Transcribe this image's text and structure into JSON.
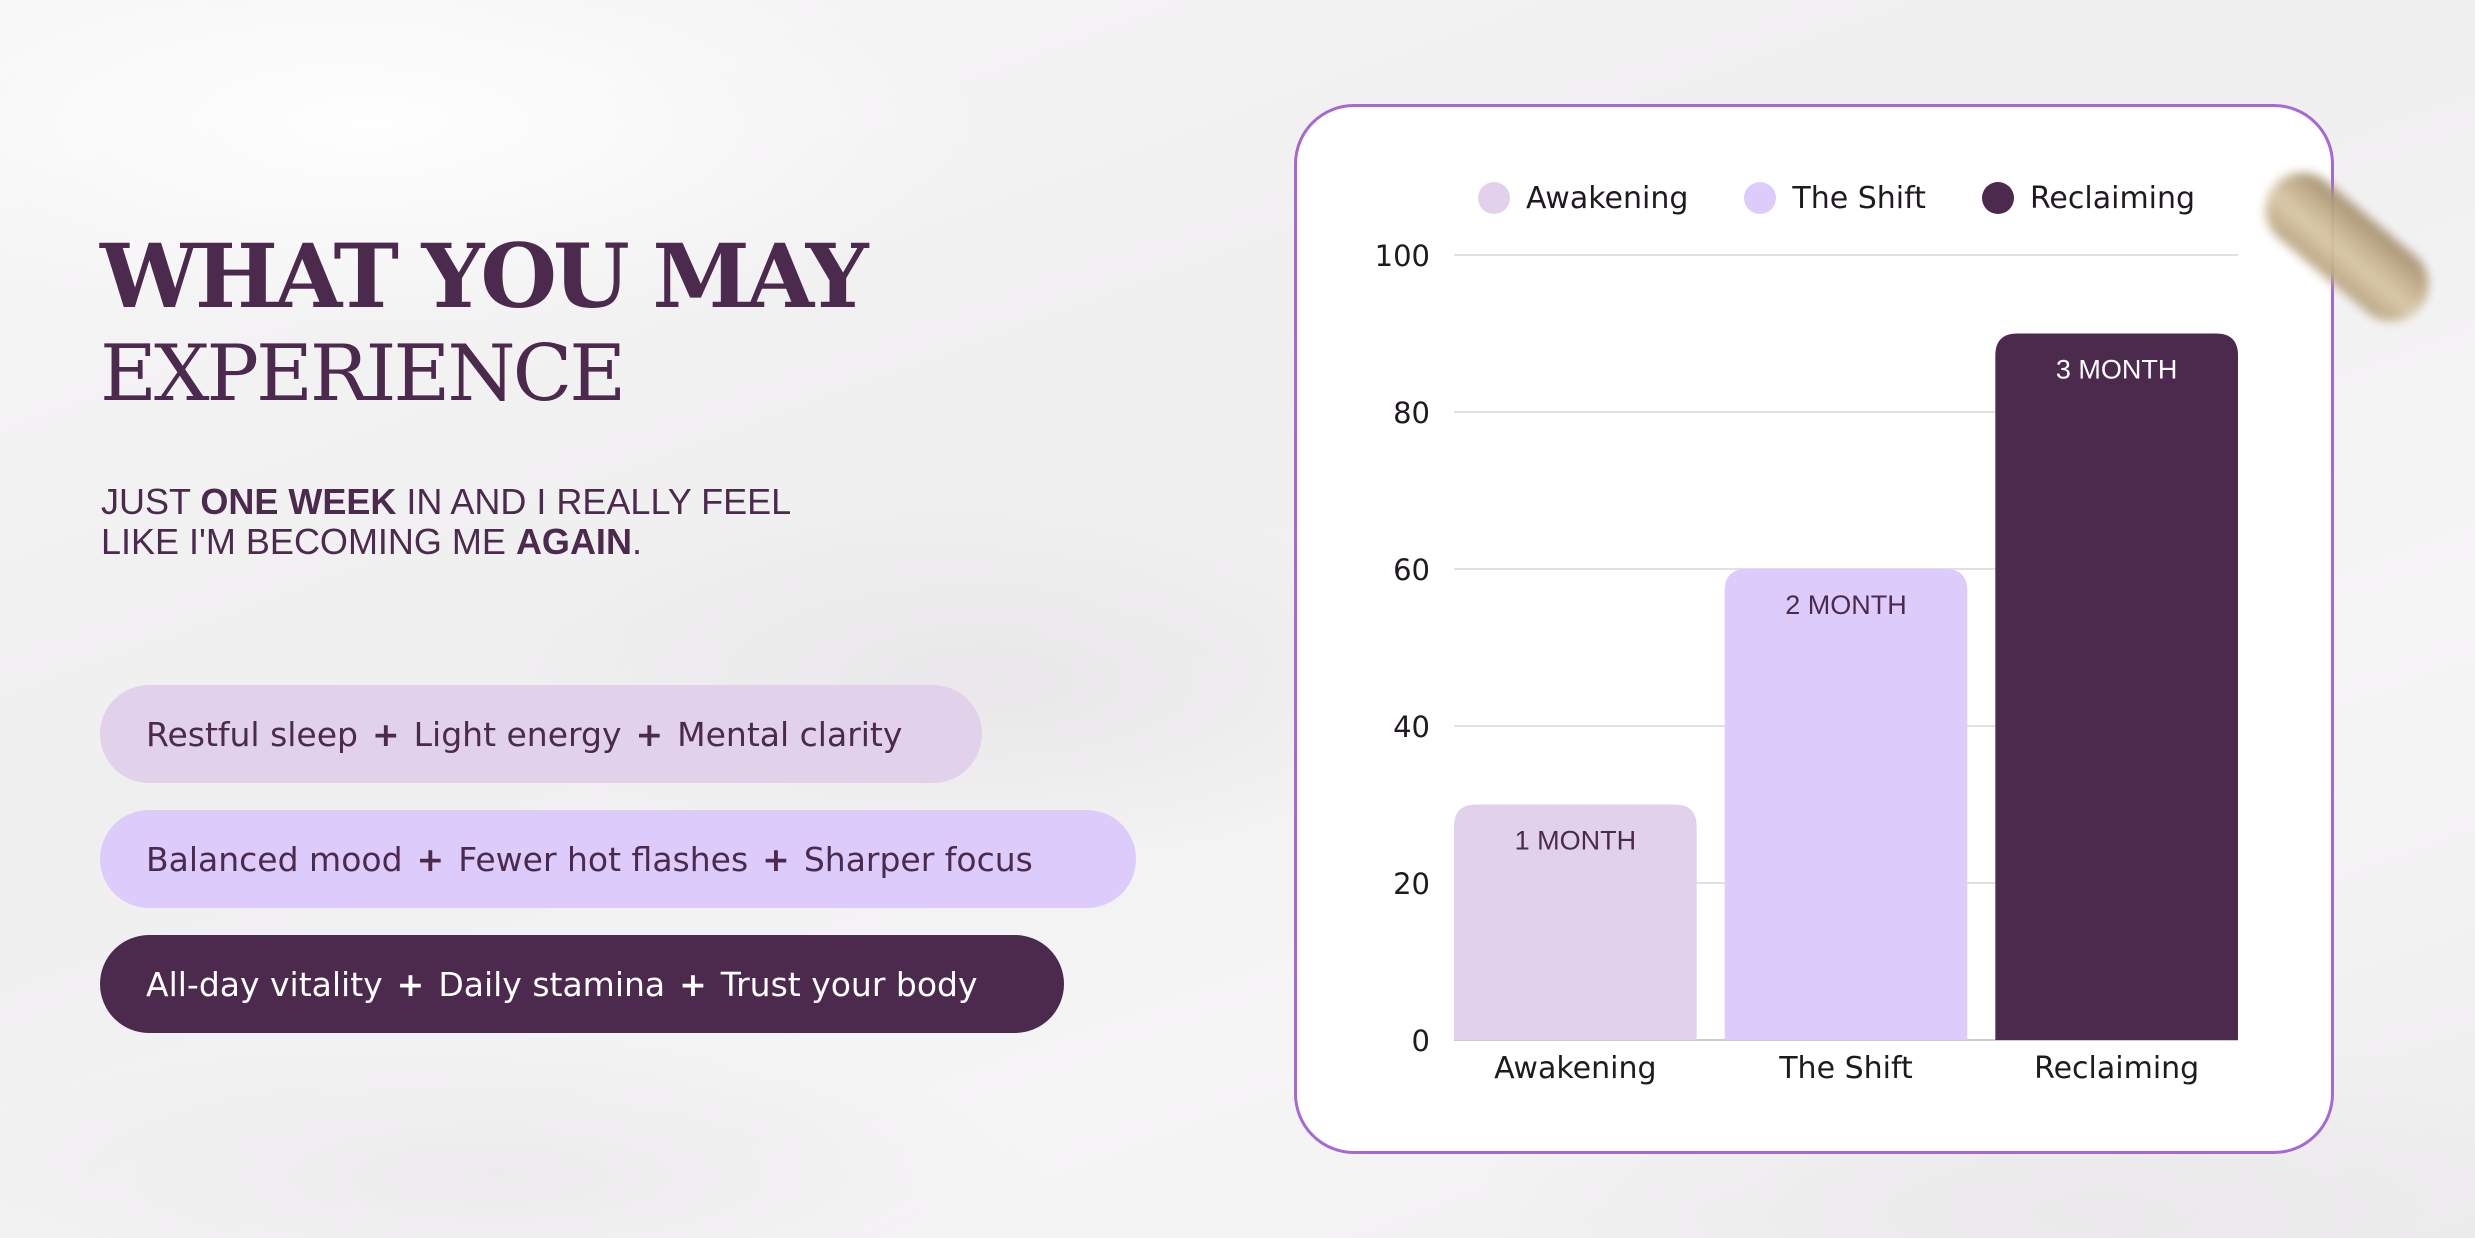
{
  "heading": {
    "line1": "WHAT YOU MAY",
    "line2": "EXPERIENCE"
  },
  "quote": {
    "row1_pre": "JUST ",
    "row1_bold": "ONE WEEK",
    "row1_post": " IN AND I REALLY FEEL",
    "row2_pre": "LIKE I'M BECOMING ME ",
    "row2_bold": "AGAIN",
    "row2_post": "."
  },
  "pills": [
    {
      "a": "Restful sleep",
      "b": "Light energy",
      "c": "Mental clarity"
    },
    {
      "a": "Balanced mood",
      "b": "Fewer hot flashes",
      "c": "Sharper focus"
    },
    {
      "a": "All-day vitality",
      "b": "Daily stamina",
      "c": "Trust your body"
    }
  ],
  "plus": "+",
  "colors": {
    "primary": "#4b2a4d",
    "lilac": "#e1d1ea",
    "lavender": "#ddccfb",
    "card_border": "#a668d6"
  },
  "chart_data": {
    "type": "bar",
    "categories": [
      "Awakening",
      "The Shift",
      "Reclaiming"
    ],
    "values": [
      30,
      60,
      90
    ],
    "data_labels": [
      "1 MONTH",
      "2 MONTH",
      "3 MONTH"
    ],
    "series_colors": [
      "#e1d1ea",
      "#ddccfb",
      "#4b2a4d"
    ],
    "label_colors": [
      "#4b2a4d",
      "#4b2a4d",
      "#ffffff"
    ],
    "legend": [
      "Awakening",
      "The Shift",
      "Reclaiming"
    ],
    "legend_position": "top",
    "ylim": [
      0,
      100
    ],
    "yticks": [
      0,
      20,
      40,
      60,
      80,
      100
    ],
    "grid": true
  }
}
